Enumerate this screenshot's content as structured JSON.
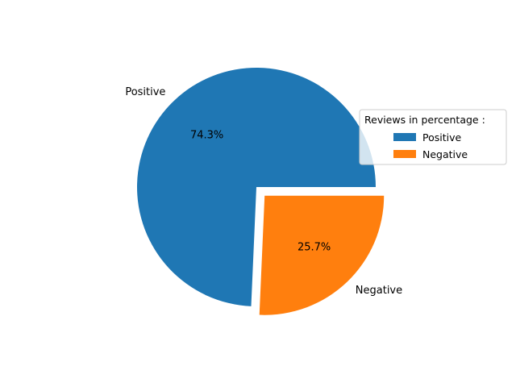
{
  "chart_data": {
    "type": "pie",
    "title": "",
    "categories": [
      "Positive",
      "Negative"
    ],
    "values": [
      74.3,
      25.7
    ],
    "value_labels": [
      "74.3%",
      "25.7%"
    ],
    "colors": [
      "#1f77b4",
      "#ff7f0e"
    ],
    "exploded": [
      false,
      true
    ],
    "legend": {
      "title": "Reviews in percentage :",
      "placement": "right",
      "entries": [
        "Positive",
        "Negative"
      ]
    }
  }
}
